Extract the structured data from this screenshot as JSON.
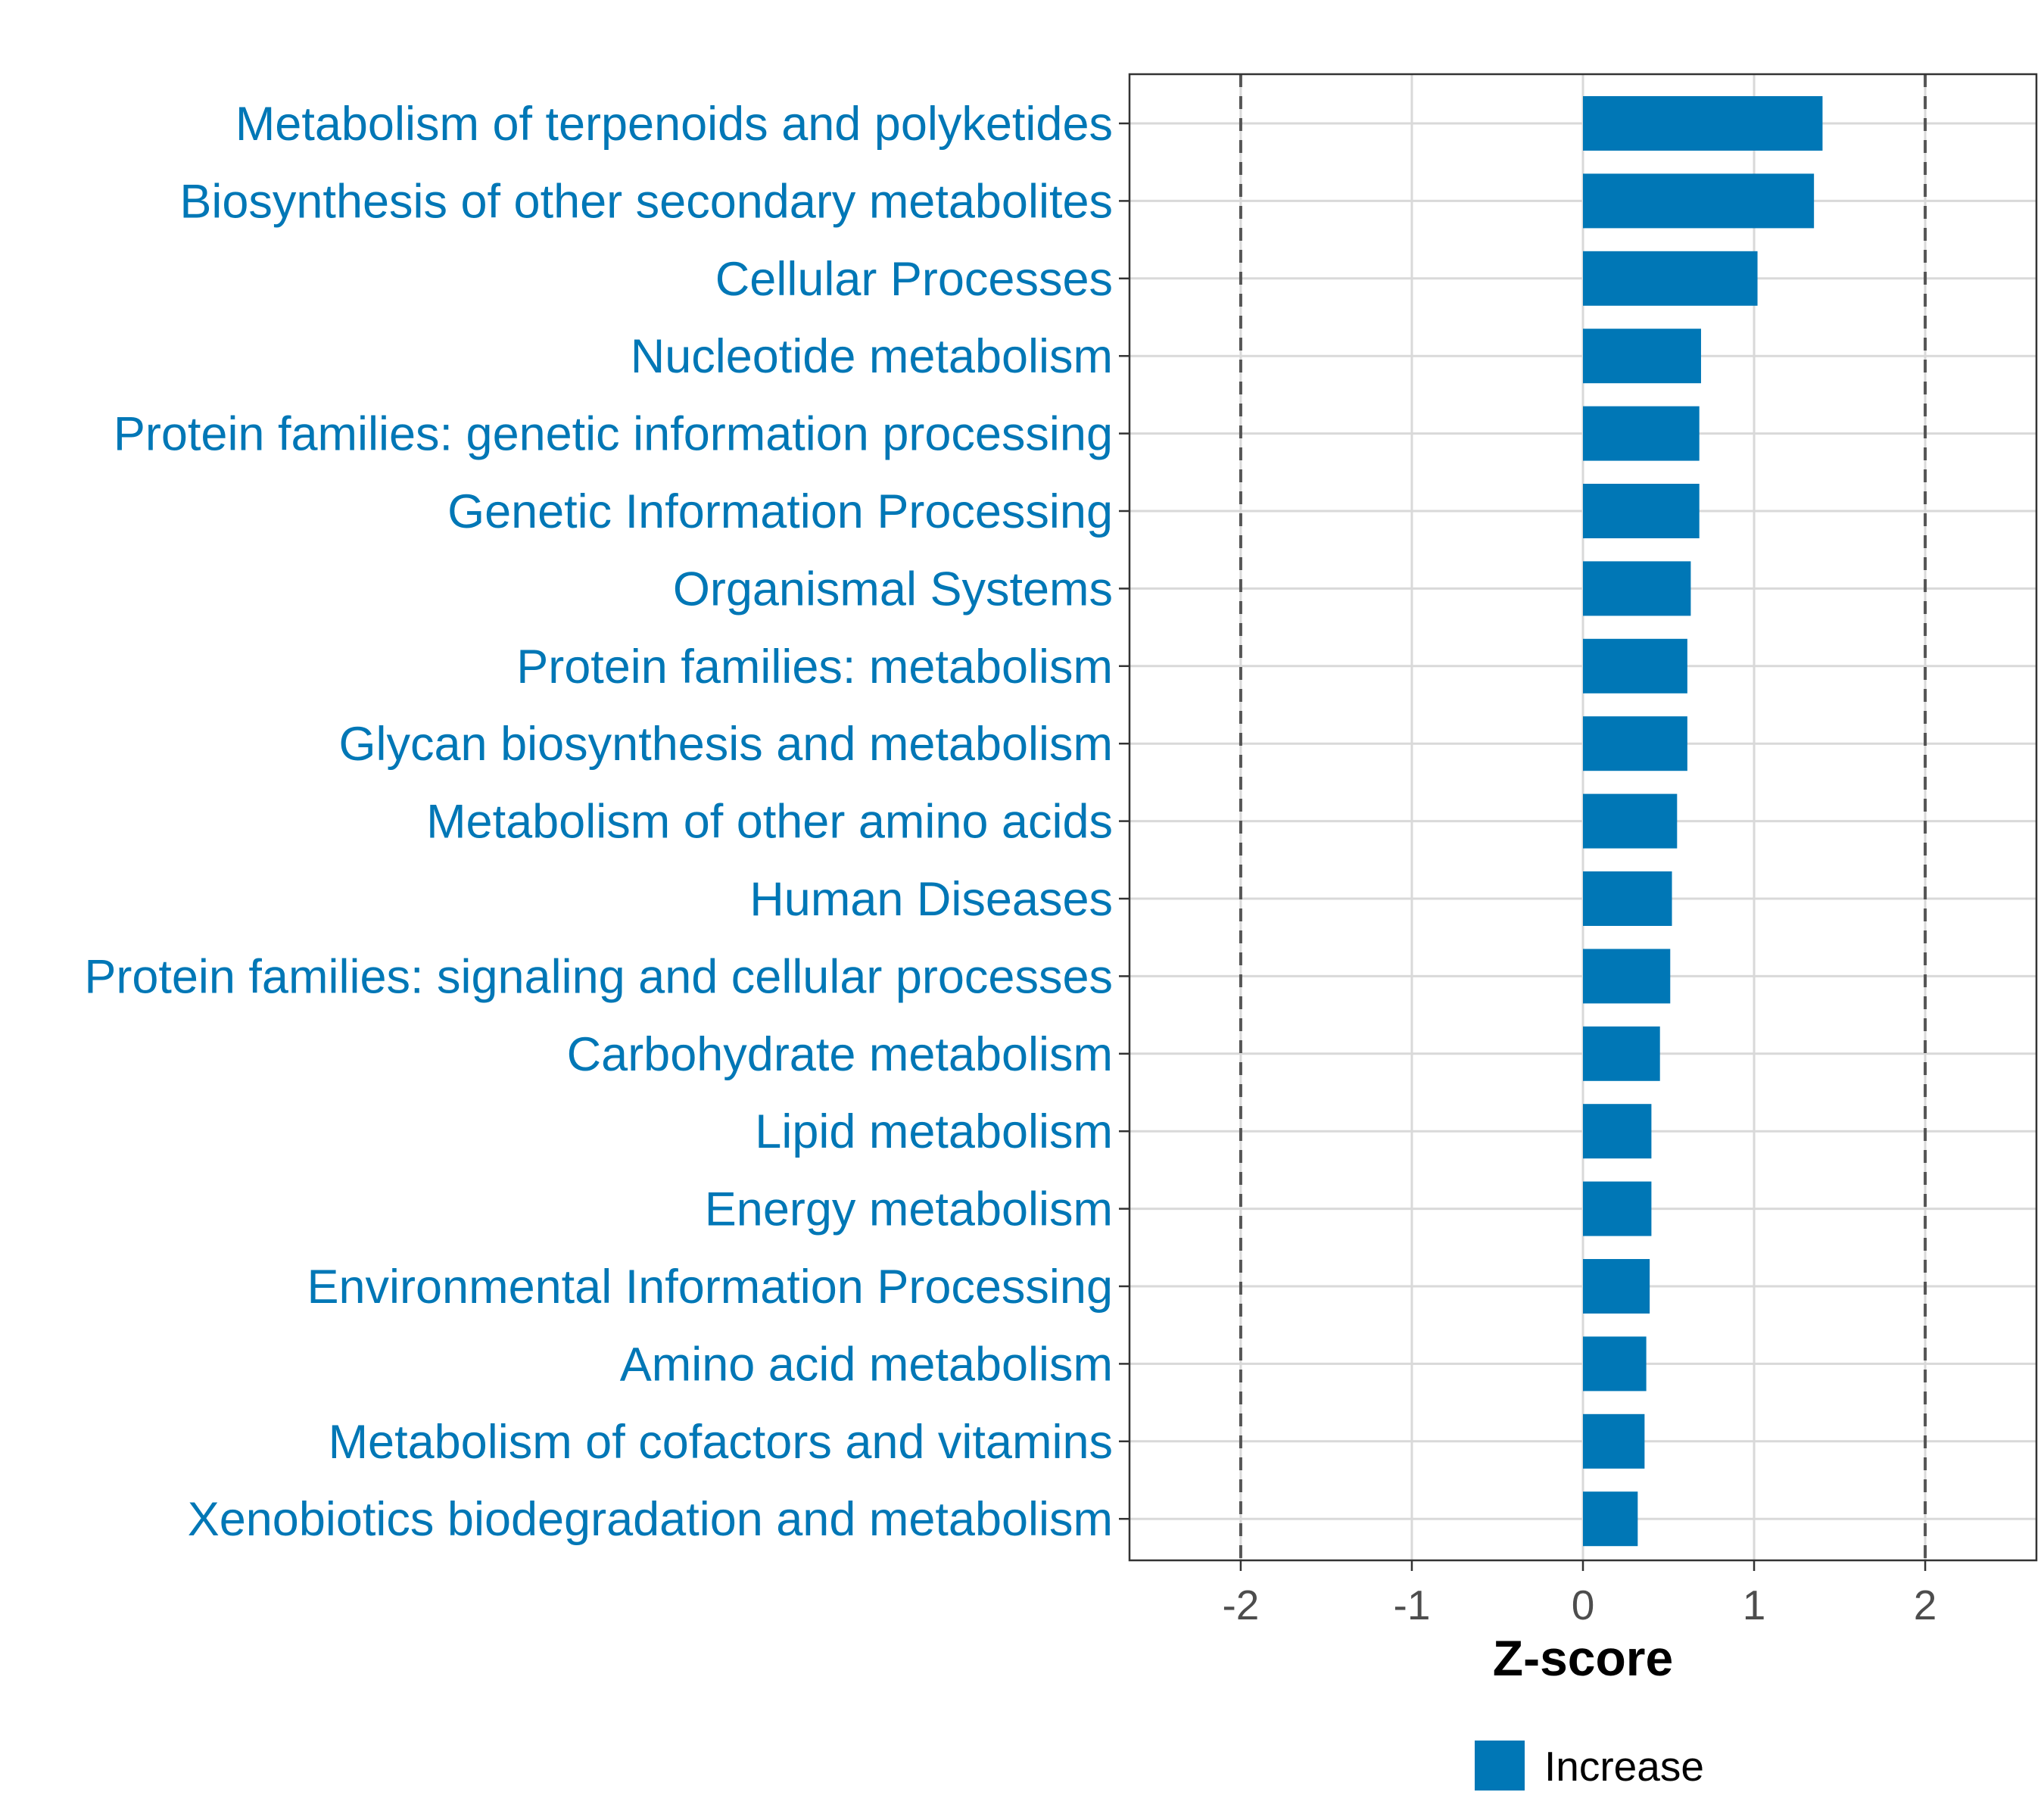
{
  "chart_data": {
    "type": "bar",
    "orientation": "horizontal",
    "categories": [
      "Metabolism of terpenoids and polyketides",
      "Biosynthesis of other secondary metabolites",
      "Cellular Processes",
      "Nucleotide metabolism",
      "Protein families: genetic information processing",
      "Genetic Information Processing",
      "Organismal Systems",
      "Protein families: metabolism",
      "Glycan biosynthesis and metabolism",
      "Metabolism of other amino acids",
      "Human Diseases",
      "Protein families: signaling and cellular processes",
      "Carbohydrate metabolism",
      "Lipid metabolism",
      "Energy metabolism",
      "Environmental Information Processing",
      "Amino acid metabolism",
      "Metabolism of cofactors and vitamins",
      "Xenobiotics biodegradation and metabolism"
    ],
    "values": [
      1.4,
      1.35,
      1.02,
      0.69,
      0.68,
      0.68,
      0.63,
      0.61,
      0.61,
      0.55,
      0.52,
      0.51,
      0.45,
      0.4,
      0.4,
      0.39,
      0.37,
      0.36,
      0.32
    ],
    "xlim": [
      -2.65,
      2.65
    ],
    "xticks": [
      -2,
      -1,
      0,
      1,
      2
    ],
    "xtick_labels": [
      "-2",
      "-1",
      "0",
      "1",
      "2"
    ],
    "reference_lines": [
      -2,
      2
    ],
    "title": "",
    "xlabel": "Z-score",
    "ylabel": "",
    "grid": true,
    "legend": {
      "position": "bottom",
      "entries": [
        {
          "label": "Increase",
          "color": "#0077B6"
        }
      ]
    },
    "colors": {
      "bar": "#0077B6",
      "category_label": "#0077B6",
      "grid": "#D9D9D9",
      "reference_line": "#555555",
      "tick_label": "#4D4D4D"
    }
  }
}
